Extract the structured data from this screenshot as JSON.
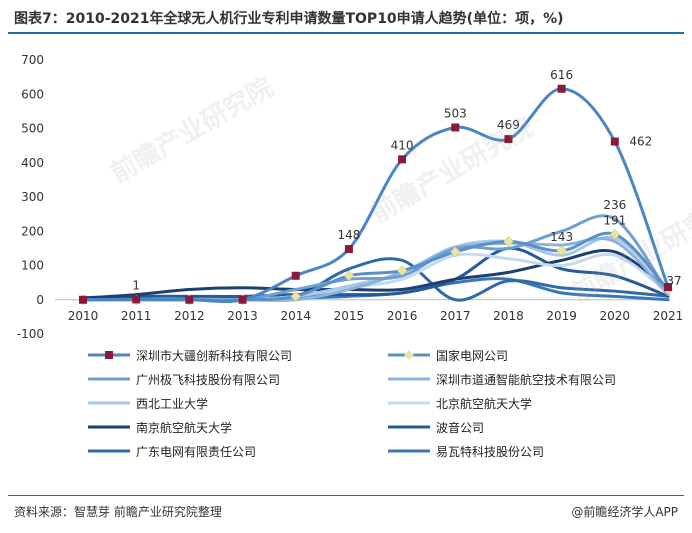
{
  "header": {
    "title": "图表7：2010-2021年全球无人机行业专利申请数量TOP10申请人趋势(单位：项，%)"
  },
  "footer": {
    "source": "资料来源：智慧芽 前瞻产业研究院整理",
    "brand": "@前瞻经济学人APP"
  },
  "watermark": {
    "text": "前瞻产业研究院"
  },
  "chart_data": {
    "type": "line",
    "x": [
      "2010",
      "2011",
      "2012",
      "2013",
      "2014",
      "2015",
      "2016",
      "2017",
      "2018",
      "2019",
      "2020",
      "2021"
    ],
    "ylim": [
      -100,
      700
    ],
    "yticks": [
      -100,
      0,
      100,
      200,
      300,
      400,
      500,
      600,
      700
    ],
    "grid": false,
    "legend_position": "bottom",
    "series": [
      {
        "name": "深圳市大疆创新科技有限公司",
        "color": "#4a86c5",
        "marker": "square",
        "marker_color": "#8b1a3a",
        "values": [
          0,
          1,
          0,
          0,
          70,
          148,
          410,
          503,
          469,
          616,
          462,
          37
        ],
        "labels": [
          null,
          "1",
          null,
          null,
          null,
          "148",
          "410",
          "503",
          "469",
          "616",
          "462",
          "37"
        ]
      },
      {
        "name": "国家电网公司",
        "color": "#5b8fc9",
        "marker": "diamond",
        "marker_color": "#e8e6a0",
        "values": [
          0,
          0,
          0,
          0,
          10,
          70,
          85,
          140,
          170,
          143,
          191,
          30
        ],
        "labels": [
          null,
          null,
          null,
          null,
          null,
          null,
          null,
          null,
          null,
          "143",
          "191",
          null
        ]
      },
      {
        "name": "广州极飞科技股份有限公司",
        "color": "#6fa0d4",
        "marker": "none",
        "values": [
          0,
          0,
          0,
          0,
          30,
          60,
          70,
          150,
          150,
          200,
          236,
          20
        ],
        "labels": [
          null,
          null,
          null,
          null,
          null,
          null,
          null,
          null,
          null,
          null,
          "236",
          null
        ]
      },
      {
        "name": "深圳市道通智能航空技术有限公司",
        "color": "#8ab4de",
        "marker": "none",
        "values": [
          0,
          0,
          0,
          0,
          0,
          30,
          80,
          150,
          165,
          160,
          170,
          15
        ],
        "labels": []
      },
      {
        "name": "西北工业大学",
        "color": "#a9c8e8",
        "marker": "none",
        "values": [
          0,
          0,
          0,
          0,
          10,
          40,
          80,
          155,
          170,
          130,
          180,
          30
        ],
        "labels": []
      },
      {
        "name": "北京航空航天大学",
        "color": "#c5daf0",
        "marker": "none",
        "values": [
          0,
          0,
          0,
          0,
          10,
          35,
          60,
          130,
          120,
          100,
          130,
          20
        ],
        "labels": []
      },
      {
        "name": "南京航空航天大学",
        "color": "#1d3f6e",
        "marker": "none",
        "values": [
          5,
          15,
          30,
          35,
          30,
          30,
          30,
          60,
          80,
          115,
          140,
          30
        ],
        "labels": []
      },
      {
        "name": "波音公司",
        "color": "#245a96",
        "marker": "none",
        "values": [
          5,
          10,
          10,
          10,
          15,
          15,
          20,
          60,
          150,
          90,
          70,
          10
        ],
        "labels": []
      },
      {
        "name": "广东电网有限责任公司",
        "color": "#2e6aa8",
        "marker": "none",
        "values": [
          0,
          0,
          0,
          0,
          10,
          90,
          115,
          0,
          55,
          35,
          25,
          10
        ],
        "labels": []
      },
      {
        "name": "易瓦特科技股份公司",
        "color": "#3878ba",
        "marker": "none",
        "values": [
          0,
          0,
          0,
          0,
          5,
          10,
          20,
          50,
          60,
          20,
          10,
          0
        ],
        "labels": []
      }
    ]
  }
}
